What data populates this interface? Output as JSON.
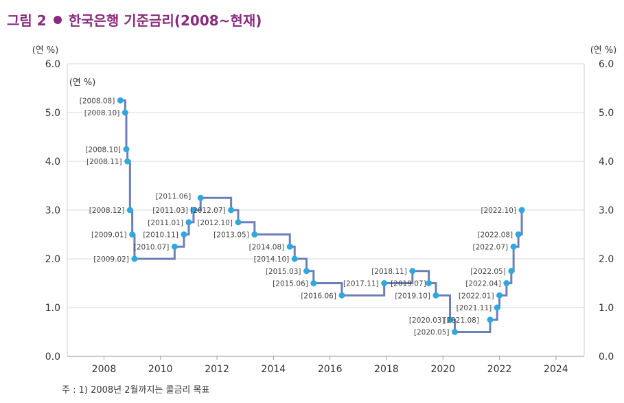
{
  "figure": {
    "number_label": "그림 2",
    "title": "한국은행 기준금리(2008~현재)",
    "note": "주 : 1) 2008년 2월까지는 콜금리 목표"
  },
  "colors": {
    "title": "#8a2a7d",
    "line": "#6b7fb8",
    "point": "#2ea8de",
    "grid": "#d9d9d9",
    "text": "#333333"
  },
  "chart_data": {
    "type": "line",
    "step": true,
    "title": "한국은행 기준금리(2008~현재)",
    "xlabel": "",
    "ylabel_left": "(연 %)",
    "ylabel_right": "(연 %)",
    "inner_ylabel": "(연 %)",
    "xlim": [
      2006.7,
      2025.0
    ],
    "ylim": [
      0.0,
      6.0
    ],
    "x_ticks": [
      "2008",
      "2010",
      "2012",
      "2014",
      "2016",
      "2018",
      "2020",
      "2022",
      "2024"
    ],
    "y_ticks": [
      "0.0",
      "1.0",
      "2.0",
      "3.0",
      "4.0",
      "5.0",
      "6.0"
    ],
    "points": [
      {
        "label": "[2008.08]",
        "x": 2008.58,
        "y": 5.25
      },
      {
        "label": "[2008.10]",
        "x": 2008.75,
        "y": 5.0
      },
      {
        "label": "[2008.10]",
        "x": 2008.79,
        "y": 4.25
      },
      {
        "label": "[2008.11]",
        "x": 2008.83,
        "y": 4.0
      },
      {
        "label": "[2008.12]",
        "x": 2008.92,
        "y": 3.0
      },
      {
        "label": "[2009.01]",
        "x": 2009.0,
        "y": 2.5
      },
      {
        "label": "[2009.02]",
        "x": 2009.08,
        "y": 2.0
      },
      {
        "label": "[2010.07]",
        "x": 2010.5,
        "y": 2.25
      },
      {
        "label": "[2010.11]",
        "x": 2010.83,
        "y": 2.5
      },
      {
        "label": "[2011.01]",
        "x": 2011.0,
        "y": 2.75
      },
      {
        "label": "[2011.03]",
        "x": 2011.17,
        "y": 3.0
      },
      {
        "label": "[2011.06]",
        "x": 2011.42,
        "y": 3.25
      },
      {
        "label": "[2012.07]",
        "x": 2012.5,
        "y": 3.0
      },
      {
        "label": "[2012.10]",
        "x": 2012.75,
        "y": 2.75
      },
      {
        "label": "[2013.05]",
        "x": 2013.33,
        "y": 2.5
      },
      {
        "label": "[2014.08]",
        "x": 2014.58,
        "y": 2.25
      },
      {
        "label": "[2014.10]",
        "x": 2014.75,
        "y": 2.0
      },
      {
        "label": "[2015.03]",
        "x": 2015.17,
        "y": 1.75
      },
      {
        "label": "[2015.06]",
        "x": 2015.42,
        "y": 1.5
      },
      {
        "label": "[2016.06]",
        "x": 2016.42,
        "y": 1.25
      },
      {
        "label": "[2017.11]",
        "x": 2017.92,
        "y": 1.5
      },
      {
        "label": "[2018.11]",
        "x": 2018.92,
        "y": 1.75
      },
      {
        "label": "[2019.07]",
        "x": 2019.5,
        "y": 1.5
      },
      {
        "label": "[2019.10]",
        "x": 2019.75,
        "y": 1.25
      },
      {
        "label": "[2020.03]",
        "x": 2020.25,
        "y": 0.75
      },
      {
        "label": "[2020.05]",
        "x": 2020.42,
        "y": 0.5
      },
      {
        "label": "[2021.08]",
        "x": 2021.67,
        "y": 0.75
      },
      {
        "label": "[2021.11]",
        "x": 2021.92,
        "y": 1.0
      },
      {
        "label": "[2022.01]",
        "x": 2022.0,
        "y": 1.25
      },
      {
        "label": "[2022.04]",
        "x": 2022.25,
        "y": 1.5
      },
      {
        "label": "[2022.05]",
        "x": 2022.42,
        "y": 1.75
      },
      {
        "label": "[2022.07]",
        "x": 2022.5,
        "y": 2.25
      },
      {
        "label": "[2022.08]",
        "x": 2022.67,
        "y": 2.5
      },
      {
        "label": "[2022.10]",
        "x": 2022.79,
        "y": 3.0
      }
    ]
  }
}
